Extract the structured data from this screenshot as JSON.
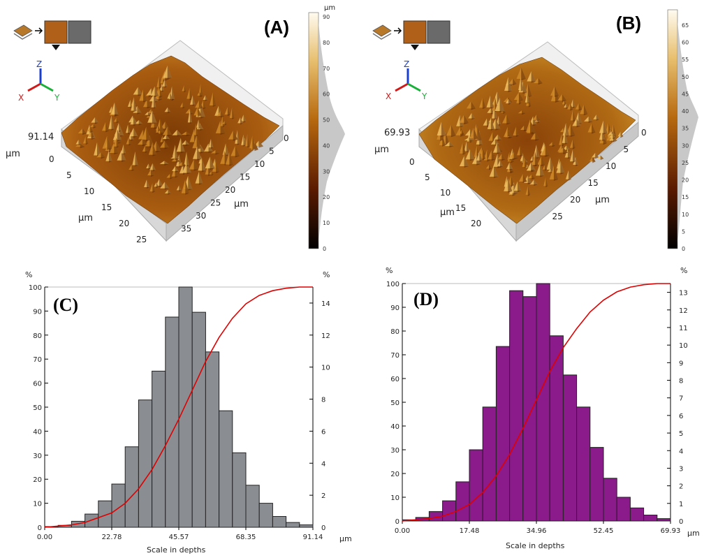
{
  "panels": [
    {
      "id": "A",
      "label": "(A)",
      "height_label": "91.14",
      "height_unit": "µm",
      "unit_label": "µm",
      "axis_labels": {
        "x": "X",
        "y": "Y",
        "z": "Z"
      },
      "colorbar": {
        "unit": "µm",
        "ticks": [
          "90",
          "80",
          "70",
          "60",
          "50",
          "40",
          "30",
          "20",
          "10",
          "0"
        ]
      },
      "x_ticks": [
        "0",
        "5",
        "10",
        "15",
        "20",
        "25",
        "30",
        "35"
      ],
      "y_ticks": [
        "0",
        "5",
        "10",
        "15",
        "20",
        "25"
      ]
    },
    {
      "id": "B",
      "label": "(B)",
      "height_label": "69.93",
      "height_unit": "µm",
      "unit_label": "µm",
      "axis_labels": {
        "x": "X",
        "y": "Y",
        "z": "Z"
      },
      "colorbar": {
        "unit": "µm",
        "ticks": [
          "65",
          "60",
          "55",
          "50",
          "45",
          "40",
          "35",
          "30",
          "25",
          "20",
          "15",
          "10",
          "5",
          "0"
        ]
      },
      "x_ticks": [
        "0",
        "5",
        "10",
        "15",
        "20",
        "25"
      ],
      "y_ticks": [
        "0",
        "5",
        "10",
        "15",
        "20"
      ]
    }
  ],
  "colors": {
    "gray_bar": "#8a8e93",
    "purple_bar": "#8b1a8b",
    "curve": "#e00000",
    "surface_dark": "#6b3000",
    "surface_light": "#f0c060"
  },
  "chart_data": [
    {
      "type": "bar",
      "label": "(C)",
      "xlabel": "Scale in  depths",
      "x_unit": "µm",
      "left_unit": "%",
      "right_unit": "%",
      "x_range": [
        0,
        91.14
      ],
      "x_tick_labels": [
        "0.00",
        "22.78",
        "45.57",
        "68.35",
        "91.14"
      ],
      "left_ylim": [
        0,
        100
      ],
      "left_ticks": [
        "0",
        "10",
        "20",
        "30",
        "40",
        "50",
        "60",
        "70",
        "80",
        "90",
        "100"
      ],
      "right_ylim": [
        0,
        15
      ],
      "right_ticks": [
        "0",
        "2",
        "4",
        "6",
        "8",
        "10",
        "12",
        "14"
      ],
      "bins": 20,
      "values": [
        0.3,
        0.8,
        2.5,
        5.5,
        11,
        18,
        33.5,
        53,
        65,
        87.5,
        100,
        89.5,
        73,
        48.5,
        31,
        17.5,
        10,
        4.5,
        2,
        1
      ],
      "cumulative": [
        0,
        0.5,
        1,
        2,
        4,
        6,
        10,
        16,
        24,
        34,
        45,
        57,
        69,
        79,
        87,
        93,
        96.5,
        98.5,
        99.5,
        100,
        100
      ]
    },
    {
      "type": "bar",
      "label": "(D)",
      "xlabel": "Scale in depths",
      "x_unit": "µm",
      "left_unit": "%",
      "right_unit": "%",
      "x_range": [
        0,
        69.93
      ],
      "x_tick_labels": [
        "0.00",
        "17.48",
        "34.96",
        "52.45",
        "69.93"
      ],
      "left_ylim": [
        0,
        100
      ],
      "left_ticks": [
        "0",
        "10",
        "20",
        "30",
        "40",
        "50",
        "60",
        "70",
        "80",
        "90",
        "100"
      ],
      "right_ylim": [
        0,
        13.5
      ],
      "right_ticks": [
        "0",
        "1",
        "2",
        "3",
        "4",
        "5",
        "6",
        "7",
        "8",
        "9",
        "10",
        "11",
        "12",
        "13"
      ],
      "bins": 20,
      "values": [
        0.5,
        1.5,
        4,
        8.5,
        16.5,
        30,
        48,
        73.5,
        97,
        94.5,
        100,
        78,
        61.5,
        48,
        31,
        18,
        10,
        5.5,
        2.5,
        1
      ],
      "cumulative": [
        0,
        0.5,
        1,
        2,
        4,
        7,
        12,
        19,
        28,
        39,
        51,
        63,
        73,
        81,
        88,
        93,
        96.5,
        98.5,
        99.5,
        100,
        100
      ]
    }
  ]
}
